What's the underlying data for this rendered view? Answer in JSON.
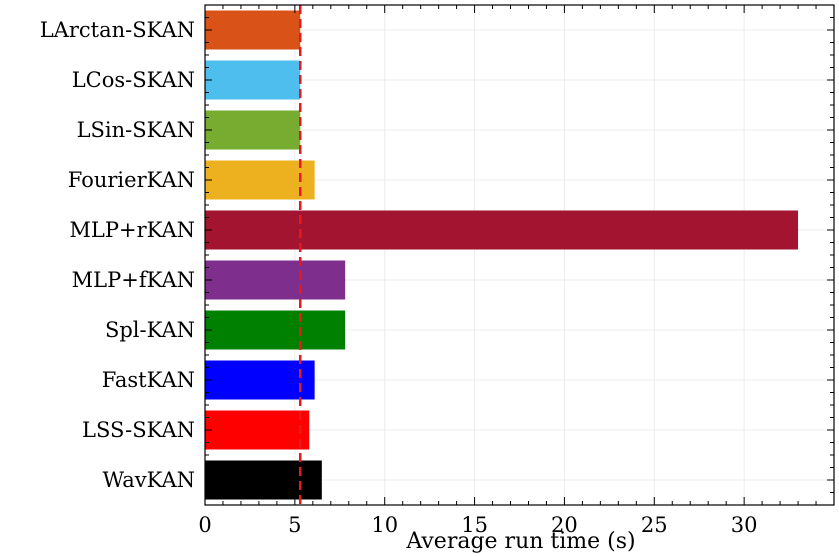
{
  "chart_data": {
    "type": "bar",
    "orientation": "horizontal",
    "title": "",
    "xlabel": "Average run time (s)",
    "ylabel": "",
    "xlim": [
      0,
      35
    ],
    "x_ticks": [
      0,
      5,
      10,
      15,
      20,
      25,
      30
    ],
    "categories": [
      "LArctan-SKAN",
      "LCos-SKAN",
      "LSin-SKAN",
      "FourierKAN",
      "MLP+rKAN",
      "MLP+fKAN",
      "Spl-KAN",
      "FastKAN",
      "LSS-SKAN",
      "WavKAN"
    ],
    "values": [
      5.3,
      5.3,
      5.3,
      6.1,
      33.0,
      7.8,
      7.8,
      6.1,
      5.8,
      6.5
    ],
    "colors": [
      "#d95319",
      "#4dbeee",
      "#77ac30",
      "#edb120",
      "#a2142f",
      "#7e2f8e",
      "#008000",
      "#0000ff",
      "#ff0000",
      "#000000"
    ],
    "reference_line": {
      "x": 5.3,
      "color": "#e41a1c",
      "style": "dashed"
    },
    "grid": true,
    "legend": "none"
  }
}
